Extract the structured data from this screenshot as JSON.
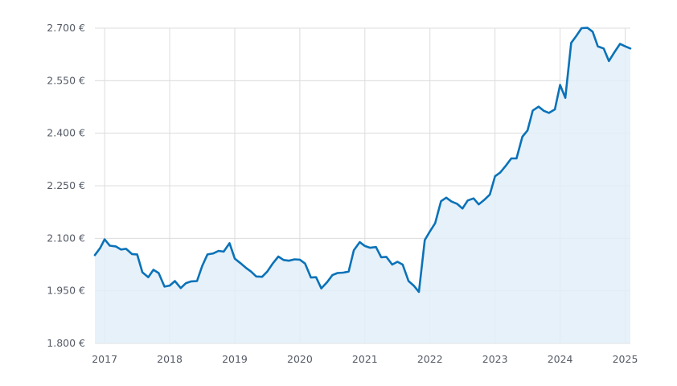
{
  "chart_data": {
    "type": "area",
    "title": "",
    "xlabel": "",
    "ylabel": "",
    "ylim": [
      1800,
      2700
    ],
    "y_ticks": [
      1800,
      1950,
      2100,
      2250,
      2400,
      2550,
      2700
    ],
    "y_tick_labels": [
      "1.800 €",
      "1.950 €",
      "2.100 €",
      "2.250 €",
      "2.400 €",
      "2.550 €",
      "2.700 €"
    ],
    "x_ticks": [
      2017,
      2018,
      2019,
      2020,
      2021,
      2022,
      2023,
      2024,
      2025
    ],
    "x_tick_labels": [
      "2017",
      "2018",
      "2019",
      "2020",
      "2021",
      "2022",
      "2023",
      "2024",
      "2025"
    ],
    "xlim": [
      2016.85,
      2025.08
    ],
    "grid": true,
    "colors": {
      "line": "#0a72b8",
      "fill": "#e3eff8",
      "grid": "#dcdcdc",
      "axis_text": "#555b66"
    },
    "series": [
      {
        "x": [
          2016.85,
          2016.93,
          2017.0,
          2017.08,
          2017.17,
          2017.25,
          2017.33,
          2017.42,
          2017.5,
          2017.58,
          2017.67,
          2017.75,
          2017.83,
          2017.92,
          2018.0,
          2018.08,
          2018.17,
          2018.25,
          2018.33,
          2018.42,
          2018.5,
          2018.58,
          2018.67,
          2018.75,
          2018.83,
          2018.92,
          2019.0,
          2019.08,
          2019.17,
          2019.25,
          2019.33,
          2019.42,
          2019.5,
          2019.58,
          2019.67,
          2019.75,
          2019.83,
          2019.92,
          2020.0,
          2020.08,
          2020.17,
          2020.25,
          2020.33,
          2020.42,
          2020.5,
          2020.58,
          2020.67,
          2020.75,
          2020.83,
          2020.92,
          2021.0,
          2021.08,
          2021.17,
          2021.25,
          2021.33,
          2021.42,
          2021.5,
          2021.58,
          2021.67,
          2021.75,
          2021.83,
          2021.92,
          2022.0,
          2022.08,
          2022.17,
          2022.25,
          2022.33,
          2022.42,
          2022.5,
          2022.58,
          2022.67,
          2022.75,
          2022.83,
          2022.92,
          2023.0,
          2023.08,
          2023.17,
          2023.25,
          2023.33,
          2023.42,
          2023.5,
          2023.58,
          2023.67,
          2023.75,
          2023.83,
          2023.92,
          2024.0,
          2024.08,
          2024.17,
          2024.25,
          2024.33,
          2024.42,
          2024.5,
          2024.58,
          2024.67,
          2024.75,
          2024.83,
          2024.92,
          2025.0,
          2025.08
        ],
        "values": [
          2052,
          2072,
          2097,
          2079,
          2077,
          2068,
          2070,
          2055,
          2054,
          2003,
          1989,
          2010,
          2001,
          1962,
          1965,
          1978,
          1958,
          1972,
          1977,
          1978,
          2021,
          2054,
          2057,
          2064,
          2062,
          2086,
          2042,
          2030,
          2016,
          2005,
          1991,
          1990,
          2005,
          2027,
          2048,
          2038,
          2036,
          2040,
          2039,
          2028,
          1988,
          1989,
          1957,
          1975,
          1995,
          2001,
          2002,
          2005,
          2066,
          2089,
          2078,
          2073,
          2075,
          2046,
          2047,
          2025,
          2033,
          2025,
          1978,
          1965,
          1947,
          2095,
          2120,
          2143,
          2206,
          2216,
          2205,
          2198,
          2185,
          2208,
          2214,
          2197,
          2209,
          2225,
          2277,
          2288,
          2308,
          2328,
          2328,
          2390,
          2408,
          2465,
          2476,
          2464,
          2458,
          2468,
          2538,
          2501,
          2658,
          2678,
          2700,
          2701,
          2690,
          2648,
          2642,
          2606,
          2630,
          2655,
          2648,
          2642
        ]
      }
    ]
  }
}
